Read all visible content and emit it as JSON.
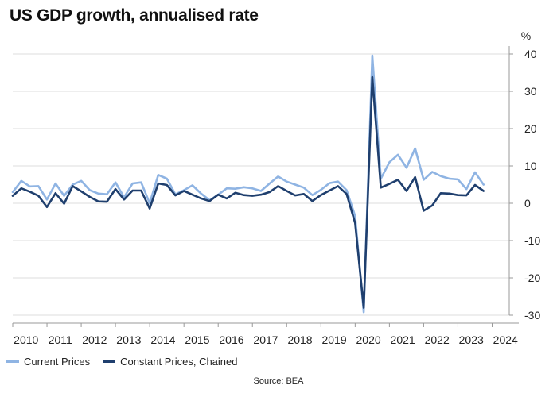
{
  "title": "US GDP growth, annualised rate",
  "source": "Source: BEA",
  "colors": {
    "current": "#8fb4e3",
    "constant": "#1f3f6e",
    "grid": "#dddddd",
    "axis": "#999999"
  },
  "chart_data": {
    "type": "line",
    "title": "US GDP growth, annualised rate",
    "ylabel": "%",
    "ylim": [
      -30,
      40
    ],
    "yticks": [
      -30,
      -20,
      -10,
      0,
      10,
      20,
      30,
      40
    ],
    "xlim": [
      2009.75,
      2024.25
    ],
    "xticks": [
      2010,
      2011,
      2012,
      2013,
      2014,
      2015,
      2016,
      2017,
      2018,
      2019,
      2020,
      2021,
      2022,
      2023,
      2024
    ],
    "grid": "horizontal",
    "legend_position": "bottom-left",
    "x": [
      2009.75,
      2010.0,
      2010.25,
      2010.5,
      2010.75,
      2011.0,
      2011.25,
      2011.5,
      2011.75,
      2012.0,
      2012.25,
      2012.5,
      2012.75,
      2013.0,
      2013.25,
      2013.5,
      2013.75,
      2014.0,
      2014.25,
      2014.5,
      2014.75,
      2015.0,
      2015.25,
      2015.5,
      2015.75,
      2016.0,
      2016.25,
      2016.5,
      2016.75,
      2017.0,
      2017.25,
      2017.5,
      2017.75,
      2018.0,
      2018.25,
      2018.5,
      2018.75,
      2019.0,
      2019.25,
      2019.5,
      2019.75,
      2020.0,
      2020.25,
      2020.5,
      2020.75,
      2021.0,
      2021.25,
      2021.5,
      2021.75,
      2022.0,
      2022.25,
      2022.5,
      2022.75,
      2023.0,
      2023.25,
      2023.5,
      2023.75
    ],
    "series": [
      {
        "name": "Current Prices",
        "values": [
          3.0,
          6.0,
          4.5,
          4.6,
          1.0,
          5.3,
          2.0,
          5.0,
          6.0,
          3.5,
          2.6,
          2.4,
          5.6,
          1.6,
          5.3,
          5.6,
          0.0,
          7.6,
          6.6,
          2.4,
          3.5,
          4.8,
          2.6,
          0.8,
          2.3,
          4.0,
          3.9,
          4.3,
          4.0,
          3.3,
          5.3,
          7.2,
          5.8,
          5.0,
          4.2,
          2.2,
          3.6,
          5.4,
          5.8,
          3.5,
          -3.4,
          -29.2,
          39.6,
          6.6,
          11.0,
          13.0,
          9.5,
          14.7,
          6.3,
          8.4,
          7.3,
          6.6,
          6.4,
          3.8,
          8.3,
          5.0,
          null
        ],
        "color": "#8fb4e3"
      },
      {
        "name": "Constant Prices, Chained",
        "values": [
          2.0,
          4.0,
          3.1,
          2.0,
          -1.0,
          2.7,
          -0.1,
          4.6,
          3.2,
          1.7,
          0.5,
          0.4,
          3.8,
          1.0,
          3.4,
          3.4,
          -1.4,
          5.3,
          4.9,
          2.1,
          3.3,
          2.3,
          1.3,
          0.6,
          2.3,
          1.3,
          2.8,
          2.2,
          2.0,
          2.3,
          3.0,
          4.6,
          3.3,
          2.1,
          2.5,
          0.6,
          2.2,
          3.4,
          4.6,
          2.5,
          -5.3,
          -28.0,
          33.8,
          4.2,
          5.2,
          6.3,
          3.3,
          7.0,
          -2.0,
          -0.6,
          2.7,
          2.6,
          2.2,
          2.1,
          4.9,
          3.3,
          null
        ],
        "color": "#1f3f6e"
      }
    ]
  }
}
